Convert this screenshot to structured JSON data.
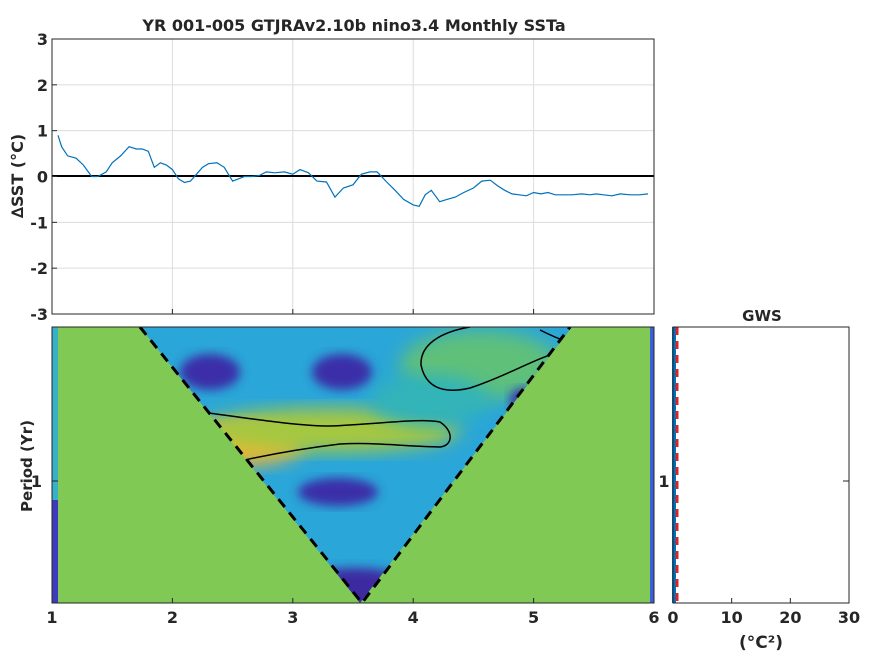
{
  "figure": {
    "title": "YR 001-005 GTJRAv2.10b nino3.4 Monthly SSTa"
  },
  "chart_data": [
    {
      "type": "line",
      "title": "YR 001-005 GTJRAv2.10b nino3.4 Monthly SSTa",
      "xlabel": "",
      "ylabel": "∆SST (°C)",
      "xlim": [
        1,
        6
      ],
      "ylim": [
        -3,
        3
      ],
      "yticks": [
        -3,
        -2,
        -1,
        0,
        1,
        2,
        3
      ],
      "xticks": [
        2,
        3,
        4,
        5
      ],
      "grid": true,
      "zero_line": true,
      "line_color": "#0072bd",
      "series": [
        {
          "x": [
            1.05,
            1.08,
            1.13,
            1.2,
            1.26,
            1.33,
            1.38,
            1.45,
            1.5,
            1.57,
            1.64,
            1.7,
            1.75,
            1.8,
            1.85,
            1.9,
            1.95,
            2.0,
            2.05,
            2.1,
            2.15,
            2.2,
            2.25,
            2.3,
            2.37,
            2.43,
            2.5,
            2.55,
            2.6,
            2.66,
            2.72,
            2.78,
            2.85,
            2.93,
            3.0,
            3.06,
            3.13,
            3.2,
            3.28,
            3.35,
            3.42,
            3.5,
            3.57,
            3.64,
            3.7,
            3.78,
            3.85,
            3.92,
            4.0,
            4.05,
            4.1,
            4.15,
            4.22,
            4.28,
            4.35,
            4.42,
            4.5,
            4.57,
            4.64,
            4.7,
            4.76,
            4.82,
            4.88,
            4.94,
            5.0,
            5.06,
            5.12,
            5.18,
            5.25,
            5.32,
            5.4,
            5.47,
            5.52,
            5.58,
            5.65,
            5.72,
            5.8,
            5.88,
            5.95
          ],
          "y": [
            0.9,
            0.65,
            0.45,
            0.4,
            0.25,
            0.0,
            0.0,
            0.1,
            0.3,
            0.45,
            0.65,
            0.6,
            0.6,
            0.55,
            0.2,
            0.3,
            0.25,
            0.15,
            -0.05,
            -0.13,
            -0.1,
            0.05,
            0.2,
            0.28,
            0.3,
            0.2,
            -0.1,
            -0.05,
            0.0,
            0.0,
            0.02,
            0.1,
            0.08,
            0.1,
            0.05,
            0.15,
            0.08,
            -0.1,
            -0.12,
            -0.45,
            -0.25,
            -0.18,
            0.05,
            0.1,
            0.1,
            -0.12,
            -0.3,
            -0.5,
            -0.62,
            -0.65,
            -0.4,
            -0.3,
            -0.55,
            -0.5,
            -0.45,
            -0.35,
            -0.25,
            -0.1,
            -0.08,
            -0.2,
            -0.3,
            -0.38,
            -0.4,
            -0.42,
            -0.35,
            -0.38,
            -0.35,
            -0.4,
            -0.4,
            -0.4,
            -0.38,
            -0.4,
            -0.38,
            -0.4,
            -0.42,
            -0.38,
            -0.4,
            -0.4,
            -0.38
          ]
        }
      ]
    },
    {
      "type": "heatmap",
      "title": "",
      "xlabel": "",
      "ylabel": "Period (Yr)",
      "xlim": [
        1,
        6
      ],
      "xticks": [
        1,
        2,
        3,
        4,
        5,
        6
      ],
      "yticks_label": [
        "1"
      ],
      "colormap": "parula",
      "cone_of_influence": "dashed black V from x≈1.7 (top) to x≈3.5 (bottom) to x≈5.3 (top)",
      "outside_cone_value": "green"
    },
    {
      "type": "line",
      "title": "GWS",
      "xlabel": "(°C²)",
      "ylabel": "",
      "xlim": [
        0,
        30
      ],
      "xticks": [
        0,
        10,
        20,
        30
      ],
      "yticks_label": [
        "1"
      ],
      "series": [
        {
          "name": "",
          "color": "#0072bd"
        },
        {
          "name": "",
          "color": "#d62728"
        }
      ]
    }
  ],
  "labels": {
    "top_ylabel": "∆SST (°C)",
    "heat_ylabel": "Period (Yr)",
    "heat_ytick": "1",
    "gws_title": "GWS",
    "gws_ytick": "1",
    "gws_xlabel": "(°C²)"
  }
}
